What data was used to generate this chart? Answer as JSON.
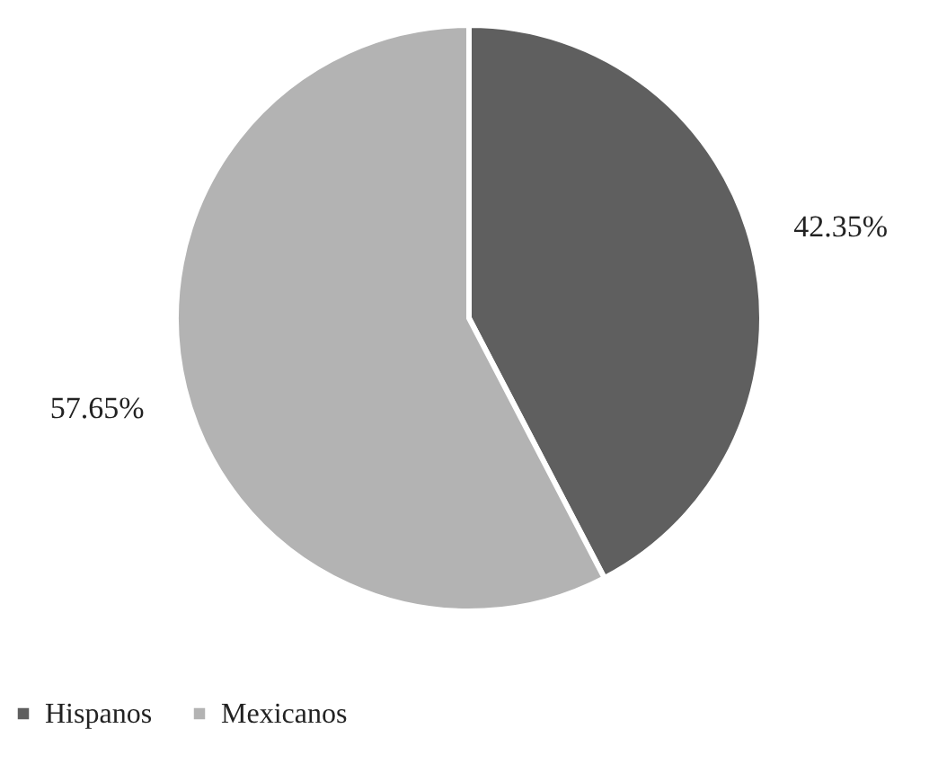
{
  "chart_data": {
    "type": "pie",
    "categories": [
      "Hispanos",
      "Mexicanos"
    ],
    "values": [
      42.35,
      57.65
    ],
    "colors": [
      "#5f5f5f",
      "#b3b3b3"
    ],
    "value_labels": [
      "42.35%",
      "57.65%"
    ],
    "legend": "bottom"
  }
}
